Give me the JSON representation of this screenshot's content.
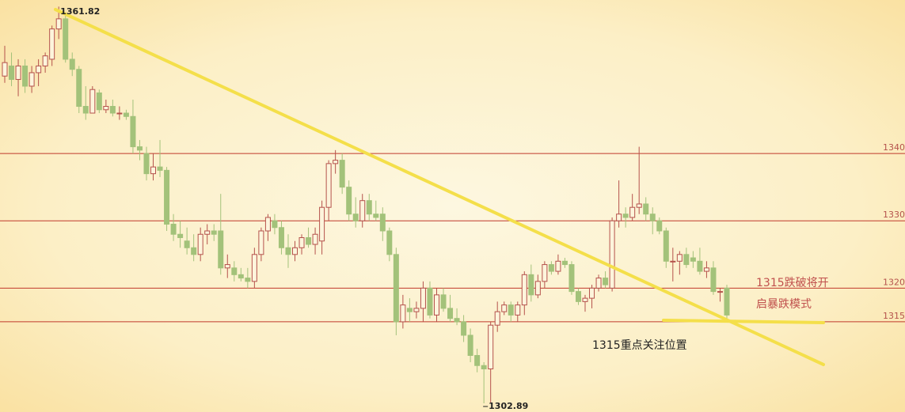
{
  "chart_data": {
    "type": "candlestick",
    "open": [
      1351.5,
      1353,
      1351,
      1353,
      1350,
      1352,
      1353,
      1354,
      1358.5,
      1360,
      1354,
      1352.5,
      1347,
      1346,
      1349,
      1346.5,
      1347,
      1346,
      1346,
      1345.5,
      1341,
      1340,
      1337,
      1338,
      1337.5,
      1329.5,
      1328,
      1327,
      1326,
      1325,
      1328,
      1328.5,
      1328.5,
      1323,
      1323,
      1322,
      1321.5,
      1321,
      1325,
      1328.5,
      1330,
      1329,
      1326,
      1325,
      1326,
      1327.5,
      1326.5,
      1327,
      1332,
      1338.5,
      1339,
      1335,
      1331,
      1330,
      1333,
      1331,
      1331,
      1328.5,
      1325,
      1315,
      1317,
      1316.5,
      1317,
      1320,
      1316,
      1319,
      1317,
      1315.5,
      1315,
      1313,
      1310,
      1308.5,
      1308,
      1314.5,
      1316.5,
      1317.5,
      1316,
      1317.5,
      1322,
      1319,
      1321,
      1323.5,
      1322.5,
      1324,
      1323.5,
      1319.5,
      1318,
      1318.5,
      1320,
      1321.5,
      1320,
      1330,
      1331,
      1330.5,
      1332,
      1332.5,
      1331,
      1330,
      1328.5,
      1324,
      1324,
      1325,
      1324.5,
      1324,
      1322.5,
      1323,
      1319.5,
      1320
    ],
    "high": [
      1356,
      1355,
      1354,
      1354,
      1353,
      1354,
      1355,
      1359,
      1361.82,
      1360.5,
      1355,
      1353,
      1350,
      1350,
      1349.5,
      1348,
      1348,
      1347,
      1346.5,
      1348,
      1342,
      1341,
      1340,
      1342,
      1338,
      1331,
      1330,
      1329,
      1328,
      1329,
      1329.5,
      1329.5,
      1334,
      1325,
      1324,
      1323,
      1323,
      1326,
      1329,
      1331,
      1331,
      1330,
      1328,
      1327,
      1328,
      1329,
      1329,
      1333,
      1339,
      1340.5,
      1340,
      1336,
      1333.5,
      1334,
      1334,
      1333,
      1332,
      1329,
      1326,
      1319,
      1318.5,
      1318,
      1321,
      1321,
      1320,
      1320,
      1319,
      1317,
      1316,
      1314,
      1311,
      1309,
      1315,
      1318,
      1318,
      1318,
      1318,
      1322.5,
      1323.5,
      1322,
      1324,
      1324,
      1325,
      1324.5,
      1324,
      1320,
      1319,
      1320.5,
      1322,
      1322.5,
      1330.5,
      1336,
      1332,
      1334,
      1341,
      1333.5,
      1332,
      1330.5,
      1329,
      1326,
      1325.5,
      1326,
      1325.5,
      1326,
      1324,
      1324,
      1320,
      1320.5
    ],
    "low": [
      1350.5,
      1350,
      1348.5,
      1349,
      1349,
      1350,
      1352,
      1353,
      1357,
      1353.5,
      1351.5,
      1346,
      1345,
      1346,
      1346,
      1346,
      1345.5,
      1345,
      1345,
      1340,
      1339,
      1336,
      1336,
      1336.5,
      1328.5,
      1327,
      1326,
      1325,
      1324,
      1324,
      1326.5,
      1327,
      1322,
      1321.5,
      1321,
      1321,
      1320,
      1320,
      1324,
      1327,
      1328,
      1325,
      1323,
      1324,
      1325,
      1326,
      1325,
      1325,
      1330,
      1337,
      1334,
      1330,
      1329,
      1329,
      1330,
      1330,
      1327,
      1324,
      1313,
      1314,
      1315,
      1315.5,
      1315,
      1315.5,
      1315,
      1316.5,
      1315,
      1314.5,
      1312,
      1309,
      1307.5,
      1302.89,
      1303,
      1313.5,
      1316,
      1315,
      1315,
      1316,
      1318,
      1318.5,
      1320,
      1322,
      1322,
      1323,
      1319,
      1317.5,
      1316.5,
      1317,
      1319.5,
      1320,
      1319.5,
      1329,
      1329,
      1330,
      1331,
      1330,
      1328,
      1328,
      1323,
      1321,
      1322,
      1323,
      1323,
      1322,
      1321.5,
      1319,
      1318,
      1315.5
    ],
    "close": [
      1353.5,
      1351,
      1353,
      1350,
      1352,
      1353,
      1354.5,
      1358.5,
      1360,
      1354,
      1352.5,
      1347,
      1346,
      1349.5,
      1346.5,
      1347,
      1346,
      1346,
      1345.5,
      1341,
      1340.5,
      1337,
      1338,
      1337.5,
      1329.5,
      1328,
      1327.5,
      1326,
      1325,
      1328,
      1328.5,
      1328,
      1323,
      1323.5,
      1322,
      1321.5,
      1321,
      1325,
      1328.5,
      1330.5,
      1329,
      1326,
      1325,
      1326,
      1327.5,
      1326.5,
      1328,
      1332,
      1338.5,
      1339,
      1335,
      1331,
      1330,
      1333,
      1331,
      1330.5,
      1328.5,
      1325,
      1315,
      1317.5,
      1316.5,
      1317,
      1320,
      1316,
      1319,
      1317,
      1315.5,
      1315,
      1313,
      1310,
      1308.5,
      1308,
      1314.5,
      1316.5,
      1317.5,
      1316,
      1317.5,
      1322,
      1319,
      1321,
      1323.5,
      1322.5,
      1324,
      1323.5,
      1319.5,
      1318,
      1318.5,
      1320,
      1321.5,
      1320.5,
      1330,
      1331,
      1330.5,
      1332,
      1332.5,
      1331,
      1330,
      1328.5,
      1324,
      1324,
      1325,
      1323.5,
      1324,
      1322.5,
      1323,
      1319.5,
      1319.5,
      1316
    ],
    "up_color": "#b5524c",
    "down_color": "#a3c27a",
    "ylim": [
      1301.6,
      1362.8
    ],
    "yticks": [
      {
        "value": 1340,
        "label": "1340."
      },
      {
        "value": 1330,
        "label": "1330."
      },
      {
        "value": 1320,
        "label": "1320."
      },
      {
        "value": 1315,
        "label": "1315."
      }
    ],
    "grid": true,
    "grid_color": "#c0392b",
    "annotations": [
      {
        "text": "1315跌破将开"
      },
      {
        "text": "启暴跌模式"
      },
      {
        "text": "1315重点关注位置"
      }
    ]
  }
}
